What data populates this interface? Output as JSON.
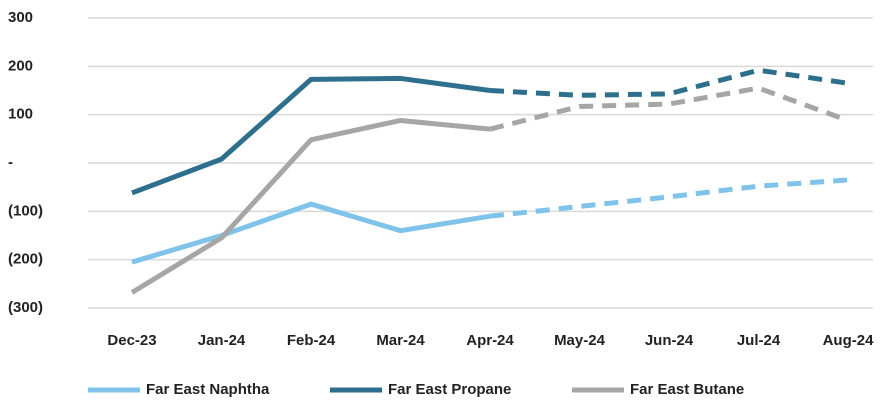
{
  "chart_data": {
    "type": "line",
    "categories": [
      "Dec-23",
      "Jan-24",
      "Feb-24",
      "Mar-24",
      "Apr-24",
      "May-24",
      "Jun-24",
      "Jul-24",
      "Aug-24"
    ],
    "dashed_from": "Apr-24",
    "series": [
      {
        "name": "Far East Naphtha",
        "color": "#7fc3ea",
        "values": [
          -205,
          -150,
          -85,
          -140,
          -110,
          -90,
          -70,
          -48,
          -35
        ]
      },
      {
        "name": "Far East Propane",
        "color": "#2e6f8e",
        "values": [
          -62,
          8,
          173,
          175,
          150,
          140,
          143,
          192,
          165
        ]
      },
      {
        "name": "Far East Butane",
        "color": "#a6a6a6",
        "values": [
          -268,
          -155,
          48,
          88,
          70,
          117,
          122,
          155,
          88
        ]
      }
    ],
    "ylim": [
      -300,
      300
    ],
    "yticks": [
      {
        "value": -300,
        "label": "(300)"
      },
      {
        "value": -200,
        "label": "(200)"
      },
      {
        "value": -100,
        "label": "(100)"
      },
      {
        "value": 0,
        "label": "-"
      },
      100,
      200,
      300
    ],
    "grid": true,
    "legend": "bottom"
  }
}
